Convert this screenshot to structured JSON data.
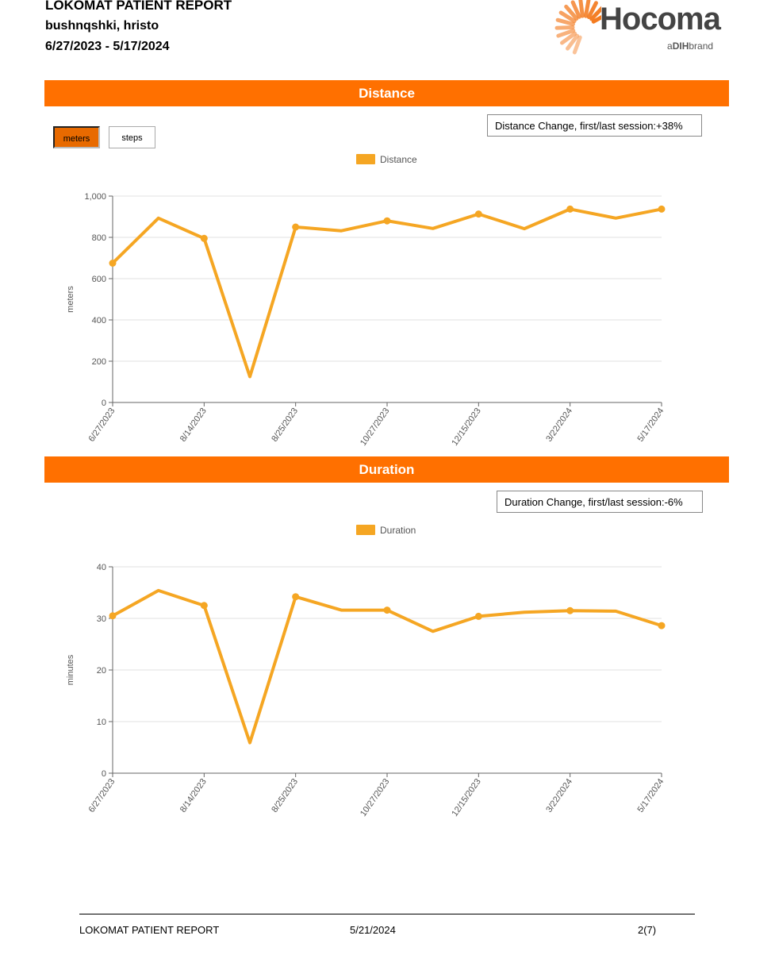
{
  "header": {
    "title": "LOKOMAT PATIENT REPORT",
    "patient_name": "bushnqshki, hristo",
    "date_range": "6/27/2023 - 5/17/2024"
  },
  "logo": {
    "brand": "Hocoma",
    "tagline_prefix": "a",
    "tagline_brand": "DIH",
    "tagline_suffix": "brand",
    "accent": "#f47b20"
  },
  "colors": {
    "section_bar": "#ff7000",
    "series": "#f5a623"
  },
  "distance_section": {
    "title": "Distance",
    "unit_buttons": {
      "meters": "meters",
      "steps": "steps",
      "selected": "meters"
    },
    "change_text": "Distance Change, first/last session:+38%"
  },
  "duration_section": {
    "title": "Duration",
    "change_text": "Duration Change, first/last session:-6%"
  },
  "chart_data": [
    {
      "type": "line",
      "legend": "Distance",
      "ylabel": "meters",
      "ylim": [
        0,
        1000
      ],
      "yticks": [
        "0",
        "200",
        "400",
        "600",
        "800",
        "1,000"
      ],
      "x_tick_labels": [
        "6/27/2023",
        "8/14/2023",
        "8/25/2023",
        "10/27/2023",
        "12/15/2023",
        "3/22/2024",
        "5/17/2024"
      ],
      "values": [
        675,
        893,
        795,
        125,
        850,
        832,
        880,
        843,
        913,
        842,
        937,
        893,
        937
      ],
      "markers": [
        0,
        2,
        4,
        6,
        8,
        10,
        12
      ],
      "grid": true
    },
    {
      "type": "line",
      "legend": "Duration",
      "ylabel": "minutes",
      "ylim": [
        0,
        40
      ],
      "yticks": [
        "0",
        "10",
        "20",
        "30",
        "40"
      ],
      "x_tick_labels": [
        "6/27/2023",
        "8/14/2023",
        "8/25/2023",
        "10/27/2023",
        "12/15/2023",
        "3/22/2024",
        "5/17/2024"
      ],
      "values": [
        30.5,
        35.4,
        32.5,
        5.9,
        34.2,
        31.6,
        31.6,
        27.5,
        30.4,
        31.2,
        31.5,
        31.4,
        28.6
      ],
      "markers": [
        0,
        2,
        4,
        6,
        8,
        10,
        12
      ],
      "grid": true
    }
  ],
  "footer": {
    "left": "LOKOMAT PATIENT REPORT",
    "date": "5/21/2024",
    "page": "2(7)"
  }
}
